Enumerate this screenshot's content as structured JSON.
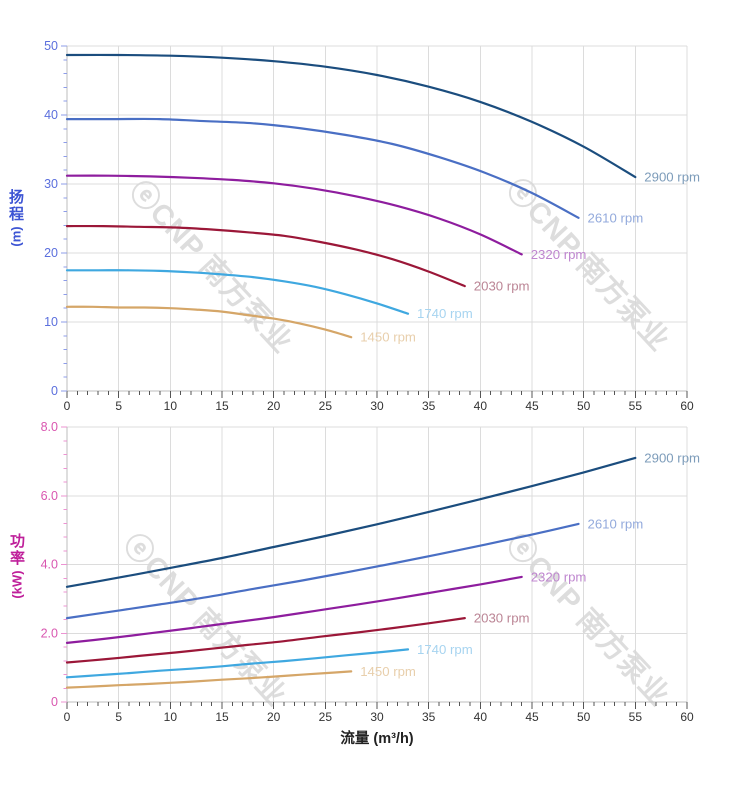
{
  "watermark": {
    "text": "ⓔCNP 南方泵业",
    "color": "#d8d8d8"
  },
  "axis_line_color": "#bdbdbd",
  "grid_color": "#dcdcdc",
  "x_axis": {
    "title": "流量 (m³/h)",
    "tick_labels": [
      "0",
      "5",
      "10",
      "15",
      "20",
      "25",
      "30",
      "35",
      "40",
      "45",
      "50",
      "55",
      "60"
    ],
    "label_color": "#333333",
    "tick_color": "#555555",
    "title_color": "#222222"
  },
  "chart_data": [
    {
      "type": "line",
      "name": "head-curves",
      "ylabel": "扬程",
      "ylabel_unit": "(m)",
      "ylabel_color": "#3d55d4",
      "ytick_label_color": "#5b6fdd",
      "ytick_color": "#8d9ce8",
      "xlim": [
        0,
        60
      ],
      "ylim": [
        0,
        50
      ],
      "y_tick_labels": [
        "0",
        "10",
        "20",
        "30",
        "40",
        "50"
      ],
      "grid": true,
      "legend_position": "curve-end-labels",
      "series": [
        {
          "name": "2900 rpm",
          "color": "#1b4d7e",
          "label_color": "#7d9cba",
          "x": [
            0,
            5,
            10,
            15,
            20,
            25,
            30,
            35,
            40,
            45,
            50,
            55
          ],
          "y": [
            48.7,
            48.7,
            48.6,
            48.3,
            47.8,
            47.0,
            45.8,
            44.1,
            41.9,
            39.0,
            35.4,
            31.0
          ]
        },
        {
          "name": "2610 rpm",
          "color": "#4a6fc4",
          "label_color": "#93aadc",
          "x": [
            0,
            4.5,
            9,
            13.5,
            18,
            22.5,
            27,
            31.5,
            36,
            40.5,
            45,
            49.5
          ],
          "y": [
            39.4,
            39.4,
            39.4,
            39.1,
            38.8,
            38.1,
            37.1,
            35.8,
            33.9,
            31.6,
            28.7,
            25.1
          ]
        },
        {
          "name": "2320 rpm",
          "color": "#8e1d9e",
          "label_color": "#bf86cf",
          "x": [
            0,
            4,
            8,
            12,
            16,
            20,
            24,
            28,
            32,
            36,
            40,
            44
          ],
          "y": [
            31.2,
            31.2,
            31.1,
            30.9,
            30.6,
            30.1,
            29.3,
            28.2,
            26.8,
            25.0,
            22.7,
            19.8
          ]
        },
        {
          "name": "2030 rpm",
          "color": "#9b1738",
          "label_color": "#bb8595",
          "x": [
            0,
            3.5,
            7,
            10.5,
            14,
            17.5,
            21,
            24.5,
            28,
            31.5,
            35,
            38.5
          ],
          "y": [
            23.9,
            23.9,
            23.8,
            23.7,
            23.4,
            23.0,
            22.5,
            21.6,
            20.5,
            19.1,
            17.3,
            15.2
          ]
        },
        {
          "name": "1740 rpm",
          "color": "#3fa8e0",
          "label_color": "#a7d4f0",
          "x": [
            0,
            3,
            6,
            9,
            12,
            15,
            18,
            21,
            24,
            27,
            30,
            33
          ],
          "y": [
            17.5,
            17.5,
            17.5,
            17.4,
            17.2,
            16.9,
            16.5,
            15.9,
            15.1,
            14.0,
            12.7,
            11.2
          ]
        },
        {
          "name": "1450 rpm",
          "color": "#d5a668",
          "label_color": "#e8cfac",
          "x": [
            0,
            2.5,
            5,
            7.5,
            10,
            12.5,
            15,
            17.5,
            20,
            22.5,
            25,
            27.5
          ],
          "y": [
            12.2,
            12.2,
            12.1,
            12.1,
            12.0,
            11.8,
            11.5,
            11.0,
            10.5,
            9.8,
            8.9,
            7.8
          ]
        }
      ]
    },
    {
      "type": "line",
      "name": "power-curves",
      "ylabel": "功率",
      "ylabel_unit": "(kW)",
      "ylabel_color": "#bf1f9a",
      "ytick_label_color": "#d957b0",
      "ytick_color": "#ec93d2",
      "xlim": [
        0,
        60
      ],
      "ylim": [
        0,
        8
      ],
      "y_tick_labels": [
        "0",
        "2.0",
        "4.0",
        "6.0",
        "8.0"
      ],
      "grid": true,
      "legend_position": "curve-end-labels",
      "series": [
        {
          "name": "2900 rpm",
          "color": "#1b4d7e",
          "label_color": "#7d9cba",
          "x": [
            0,
            5,
            10,
            15,
            20,
            25,
            30,
            35,
            40,
            45,
            50,
            55
          ],
          "y": [
            3.35,
            3.62,
            3.9,
            4.19,
            4.51,
            4.83,
            5.17,
            5.53,
            5.9,
            6.28,
            6.68,
            7.1
          ]
        },
        {
          "name": "2610 rpm",
          "color": "#4a6fc4",
          "label_color": "#93aadc",
          "x": [
            0,
            4.5,
            9,
            13.5,
            18,
            22.5,
            27,
            31.5,
            36,
            40.5,
            45,
            49.5
          ],
          "y": [
            2.44,
            2.64,
            2.84,
            3.05,
            3.29,
            3.52,
            3.77,
            4.03,
            4.3,
            4.58,
            4.87,
            5.18
          ]
        },
        {
          "name": "2320 rpm",
          "color": "#8e1d9e",
          "label_color": "#bf86cf",
          "x": [
            0,
            4,
            8,
            12,
            16,
            20,
            24,
            28,
            32,
            36,
            40,
            44
          ],
          "y": [
            1.72,
            1.85,
            2.0,
            2.15,
            2.31,
            2.47,
            2.65,
            2.83,
            3.02,
            3.22,
            3.42,
            3.64
          ]
        },
        {
          "name": "2030 rpm",
          "color": "#9b1738",
          "label_color": "#bb8595",
          "x": [
            0,
            3.5,
            7,
            10.5,
            14,
            17.5,
            21,
            24.5,
            28,
            31.5,
            35,
            38.5
          ],
          "y": [
            1.15,
            1.24,
            1.34,
            1.44,
            1.55,
            1.66,
            1.77,
            1.9,
            2.02,
            2.15,
            2.29,
            2.44
          ]
        },
        {
          "name": "1740 rpm",
          "color": "#3fa8e0",
          "label_color": "#a7d4f0",
          "x": [
            0,
            3,
            6,
            9,
            12,
            15,
            18,
            21,
            24,
            27,
            30,
            33
          ],
          "y": [
            0.72,
            0.78,
            0.84,
            0.91,
            0.97,
            1.04,
            1.12,
            1.19,
            1.27,
            1.36,
            1.44,
            1.53
          ]
        },
        {
          "name": "1450 rpm",
          "color": "#d5a668",
          "label_color": "#e8cfac",
          "x": [
            0,
            2.5,
            5,
            7.5,
            10,
            12.5,
            15,
            17.5,
            20,
            22.5,
            25,
            27.5
          ],
          "y": [
            0.42,
            0.45,
            0.49,
            0.52,
            0.56,
            0.6,
            0.65,
            0.69,
            0.74,
            0.79,
            0.84,
            0.89
          ]
        }
      ]
    }
  ]
}
